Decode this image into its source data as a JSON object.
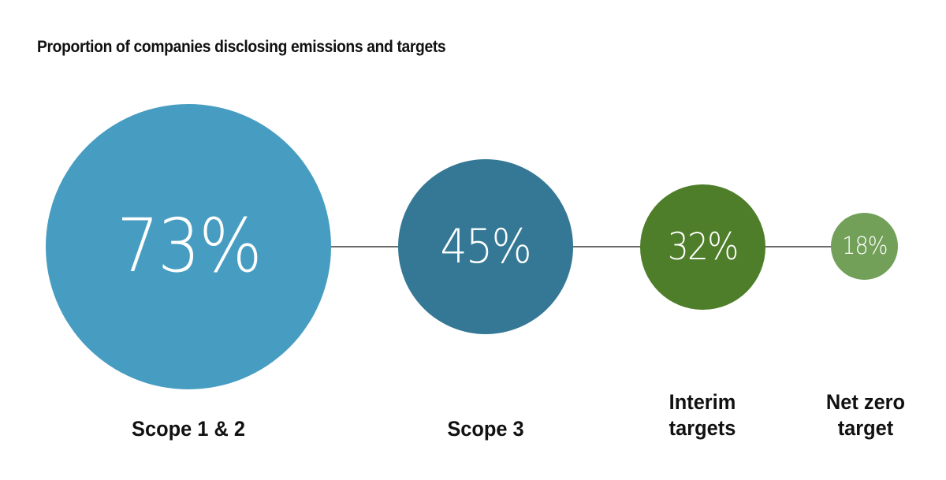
{
  "chart_data": {
    "type": "bubble",
    "title": "Proportion of companies disclosing emissions and targets",
    "categories": [
      "Scope 1 & 2",
      "Scope 3",
      "Interim targets",
      "Net zero target"
    ],
    "values": [
      73,
      45,
      32,
      18
    ],
    "unit": "%",
    "value_labels": [
      "73%",
      "45%",
      "32%",
      "18%"
    ],
    "colors": [
      "#479dc1",
      "#347895",
      "#4e7e29",
      "#72a059"
    ],
    "connector_color": "#6b6b6b",
    "xlabel": "",
    "ylabel": "",
    "grid": false,
    "legend": "none"
  },
  "title": "Proportion of companies disclosing emissions and targets",
  "bubbles": [
    {
      "value_label": "73%",
      "label_line1": "Scope 1 & 2",
      "label_line2": ""
    },
    {
      "value_label": "45%",
      "label_line1": "Scope 3",
      "label_line2": ""
    },
    {
      "value_label": "32%",
      "label_line1": "Interim",
      "label_line2": "targets"
    },
    {
      "value_label": "18%",
      "label_line1": "Net zero",
      "label_line2": "target"
    }
  ]
}
